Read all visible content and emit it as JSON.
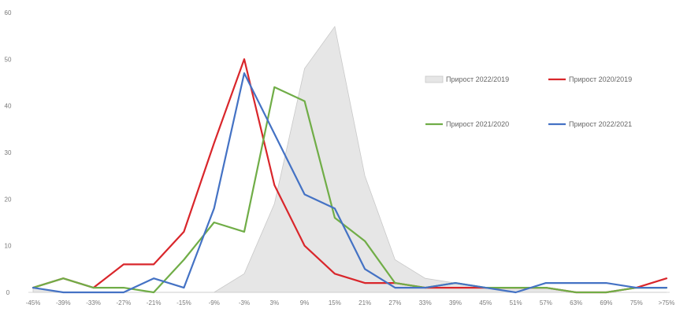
{
  "chart_data": {
    "type": "line",
    "categories": [
      "-45%",
      "-39%",
      "-33%",
      "-27%",
      "-21%",
      "-15%",
      "-9%",
      "-3%",
      "3%",
      "9%",
      "15%",
      "21%",
      "27%",
      "33%",
      "39%",
      "45%",
      "51%",
      "57%",
      "63%",
      "69%",
      "75%",
      ">75%"
    ],
    "ylim": [
      0,
      60
    ],
    "yticks": [
      0,
      10,
      20,
      30,
      40,
      50,
      60
    ],
    "grid": false,
    "legend_position": "top-right",
    "series": [
      {
        "name": "Прирост 2022/2019",
        "style": "area",
        "color": "#e6e6e6",
        "stroke": "#c8c8c8",
        "values": [
          1,
          0,
          0,
          0,
          0,
          0,
          0,
          4,
          19,
          48,
          57,
          25,
          7,
          3,
          2,
          1,
          1,
          1,
          0,
          0,
          0,
          0
        ]
      },
      {
        "name": "Прирост 2020/2019",
        "style": "line",
        "color": "#d9262b",
        "values": [
          1,
          3,
          1,
          6,
          6,
          13,
          32,
          50,
          23,
          10,
          4,
          2,
          2,
          1,
          1,
          1,
          1,
          1,
          0,
          0,
          1,
          3
        ]
      },
      {
        "name": "Прирост 2021/2020",
        "style": "line",
        "color": "#70ad47",
        "values": [
          1,
          3,
          1,
          1,
          0,
          7,
          15,
          13,
          44,
          41,
          16,
          11,
          2,
          1,
          2,
          1,
          1,
          1,
          0,
          0,
          1,
          1
        ]
      },
      {
        "name": "Прирост 2022/2021",
        "style": "line",
        "color": "#4472c4",
        "values": [
          1,
          0,
          0,
          0,
          3,
          1,
          18,
          47,
          34,
          21,
          18,
          5,
          1,
          1,
          2,
          1,
          0,
          2,
          2,
          2,
          1,
          1
        ]
      }
    ]
  }
}
